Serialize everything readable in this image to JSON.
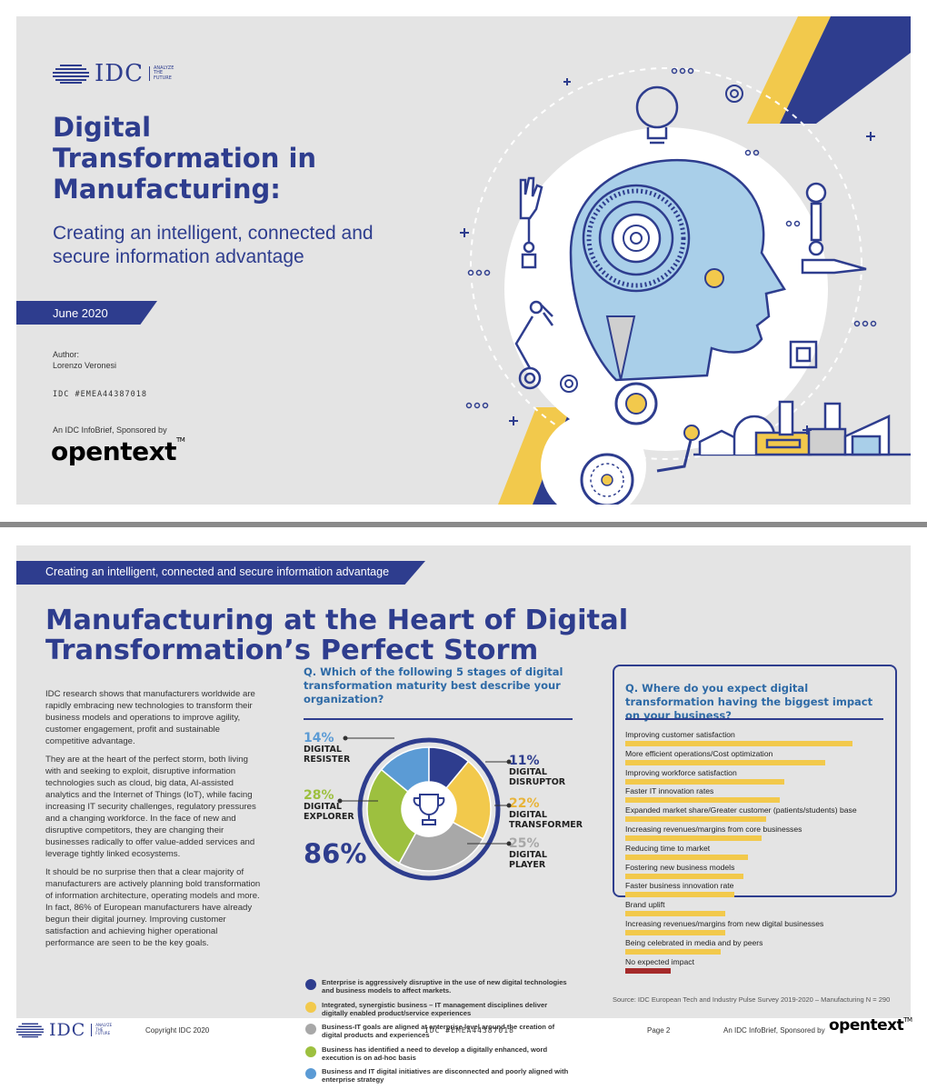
{
  "colors": {
    "navy": "#2e3d8e",
    "yellow": "#f2c94c",
    "lightblue": "#a9cfe9",
    "grey_bg": "#e4e4e4",
    "dark_red": "#a52a2a"
  },
  "page1": {
    "logo": {
      "word": "IDC",
      "tagline": [
        "ANALYZE",
        "THE",
        "FUTURE"
      ]
    },
    "title": "Digital Transformation in Manufacturing:",
    "subtitle": "Creating an intelligent, connected and secure information advantage",
    "date": "June 2020",
    "author_label": "Author:",
    "author_name": "Lorenzo Veronesi",
    "doc_id": "IDC #EMEA44387018",
    "sponsor_text": "An IDC InfoBrief, Sponsored by",
    "sponsor_brand": "opentext",
    "sponsor_tm": "TM"
  },
  "page2": {
    "band_text": "Creating an intelligent, connected and secure information advantage",
    "title": "Manufacturing at the Heart of Digital Transformation’s Perfect Storm",
    "body": [
      "IDC research shows that manufacturers worldwide are rapidly embracing new technologies to transform their business models and operations to improve agility, customer engagement, profit and sustainable competitive advantage.",
      "They are at the heart of the perfect storm, both living with and seeking to exploit, disruptive information technologies such as cloud, big data, AI-assisted analytics and the Internet of Things (IoT), while facing increasing IT security challenges, regulatory pressures and a changing workforce. In the face of new and disruptive competitors, they are changing their businesses radically to offer value-added services and leverage tightly linked ecosystems.",
      "It should be no surprise then that a clear majority of manufacturers are actively planning bold transformation of information architecture, operating models and more. In fact, 86% of European manufacturers have already begun their digital journey. Improving customer satisfaction and achieving higher operational performance are seen to be the key goals."
    ],
    "q1": "Q. Which of the following 5 stages of digital transformation maturity best describe your organization?",
    "big_pct": "86%",
    "legend": [
      {
        "color": "#2e3d8e",
        "text": "Enterprise is aggressively disruptive in the use of new digital technologies and business models to affect markets."
      },
      {
        "color": "#f2c94c",
        "text": "Integrated, synergistic business – IT management disciplines deliver digitally enabled product/service experiences"
      },
      {
        "color": "#a8a8a8",
        "text": "Business-IT goals are aligned at enterprise level around the creation of digital products and experiences"
      },
      {
        "color": "#9dc03f",
        "text": "Business has identified a need to develop a digitally enhanced, word execution is on ad-hoc basis"
      },
      {
        "color": "#5b9bd5",
        "text": "Business and IT digital initiatives are disconnected and poorly aligned with enterprise strategy"
      }
    ],
    "q2": "Q. Where do you expect digital transformation having the biggest impact on your business?",
    "source": "Source: IDC European Tech and Industry Pulse Survey 2019-2020 – Manufacturing N = 290"
  },
  "chart_data": [
    {
      "type": "pie",
      "title": "",
      "categories": [
        "DIGITAL RESISTER",
        "DIGITAL DISRUPTOR",
        "DIGITAL TRANSFORMER",
        "DIGITAL PLAYER",
        "DIGITAL EXPLORER"
      ],
      "labels": [
        {
          "pct": "14%",
          "l1": "DIGITAL",
          "l2": "RESISTER"
        },
        {
          "pct": "11%",
          "l1": "DIGITAL",
          "l2": "DISRUPTOR"
        },
        {
          "pct": "22%",
          "l1": "DIGITAL",
          "l2": "TRANSFORMER"
        },
        {
          "pct": "25%",
          "l1": "DIGITAL",
          "l2": "PLAYER"
        },
        {
          "pct": "28%",
          "l1": "DIGITAL",
          "l2": "EXPLORER"
        }
      ],
      "values": [
        14,
        11,
        22,
        25,
        28
      ],
      "colors": [
        "#5b9bd5",
        "#2e3d8e",
        "#f2c94c",
        "#a8a8a8",
        "#9dc03f"
      ]
    },
    {
      "type": "bar",
      "orientation": "horizontal",
      "title": "",
      "categories": [
        "Improving customer satisfaction",
        "More efficient operations/Cost optimization",
        "Improving workforce satisfaction",
        "Faster IT innovation rates",
        "Expanded market share/Greater customer (patients/students) base",
        "Increasing revenues/margins from core businesses",
        "Reducing time to market",
        "Fostering new business models",
        "Faster business innovation rate",
        "Brand uplift",
        "Increasing revenues/margins from new digital businesses",
        "Being celebrated in media and by peers",
        "No expected impact"
      ],
      "values": [
        50,
        44,
        35,
        34,
        31,
        30,
        27,
        26,
        24,
        22,
        22,
        21,
        10
      ],
      "colors": [
        "#f2c94c",
        "#f2c94c",
        "#f2c94c",
        "#f2c94c",
        "#f2c94c",
        "#f2c94c",
        "#f2c94c",
        "#f2c94c",
        "#f2c94c",
        "#f2c94c",
        "#f2c94c",
        "#f2c94c",
        "#a52a2a"
      ],
      "grid": false
    }
  ],
  "footer": {
    "logo_word": "IDC",
    "logo_tagline": [
      "ANALYZE",
      "THE",
      "FUTURE"
    ],
    "copyright": "Copyright IDC 2020",
    "doc_id": "IDC #EMEA44387018",
    "page": "Page 2",
    "sponsor_text": "An IDC InfoBrief, Sponsored by",
    "sponsor_brand": "opentext",
    "sponsor_tm": "TM"
  }
}
